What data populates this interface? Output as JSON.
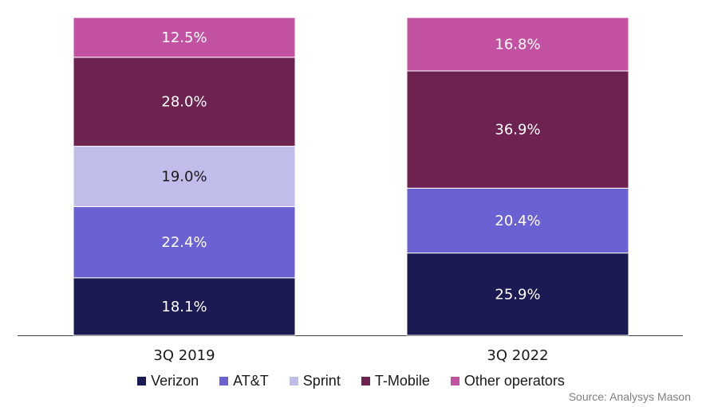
{
  "chart_data": {
    "type": "bar",
    "stacked": true,
    "normalized": true,
    "categories": [
      "3Q 2019",
      "3Q 2022"
    ],
    "series": [
      {
        "name": "Verizon",
        "color": "#1b1a52",
        "values": [
          18.1,
          25.9
        ],
        "labels": [
          "18.1%",
          "25.9%"
        ]
      },
      {
        "name": "AT&T",
        "color": "#6a62d3",
        "values": [
          22.4,
          20.4
        ],
        "labels": [
          "22.4%",
          "20.4%"
        ]
      },
      {
        "name": "Sprint",
        "color": "#c1bdea",
        "values": [
          19.0,
          0
        ],
        "labels": [
          "19.0%",
          ""
        ]
      },
      {
        "name": "T-Mobile",
        "color": "#6e224f",
        "values": [
          28.0,
          36.9
        ],
        "labels": [
          "28.0%",
          "36.9%"
        ]
      },
      {
        "name": "Other operators",
        "color": "#c353a2",
        "values": [
          12.5,
          16.8
        ],
        "labels": [
          "12.5%",
          "16.8%"
        ]
      }
    ],
    "ylim": [
      0,
      100
    ],
    "grid": false,
    "legend_position": "bottom"
  },
  "source": "Source: Analysys Mason"
}
